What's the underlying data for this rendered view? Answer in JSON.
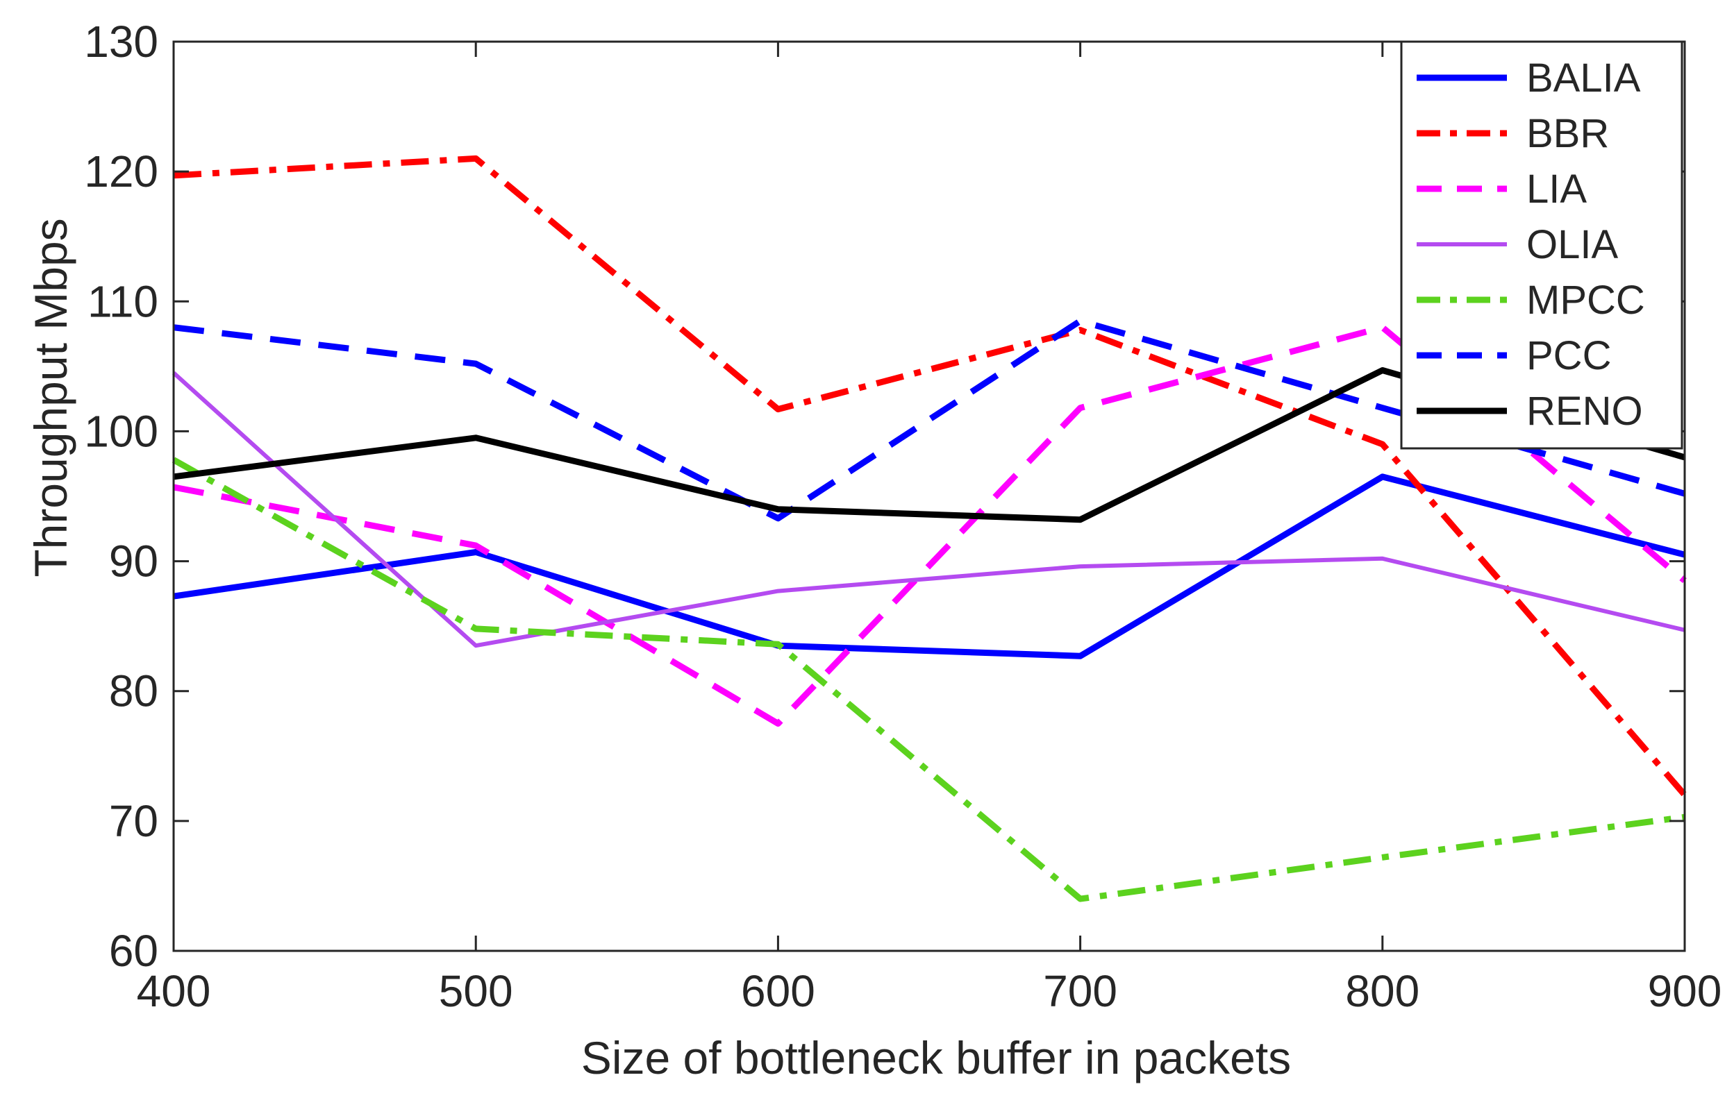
{
  "chart_data": {
    "type": "line",
    "title": "",
    "xlabel": "Size of bottleneck buffer in packets",
    "ylabel": "Throughput Mbps",
    "xlim": [
      400,
      900
    ],
    "ylim": [
      60,
      130
    ],
    "xticks": [
      400,
      500,
      600,
      700,
      800,
      900
    ],
    "yticks": [
      60,
      70,
      80,
      90,
      100,
      110,
      120,
      130
    ],
    "grid": false,
    "legend_position": "top-right",
    "x": [
      400,
      500,
      600,
      700,
      800,
      900
    ],
    "series": [
      {
        "name": "BALIA",
        "color": "#0000ff",
        "style": "solid",
        "values": [
          87.3,
          90.7,
          83.5,
          82.7,
          96.5,
          90.5
        ]
      },
      {
        "name": "BBR",
        "color": "#ff0000",
        "style": "dashdot",
        "values": [
          119.7,
          121.0,
          101.7,
          107.8,
          99.0,
          72.0
        ]
      },
      {
        "name": "LIA",
        "color": "#ff00ff",
        "style": "dashed",
        "values": [
          95.7,
          91.2,
          77.5,
          101.8,
          108.0,
          88.5
        ]
      },
      {
        "name": "OLIA",
        "color": "#b44bf0",
        "style": "solid",
        "values": [
          104.5,
          83.5,
          87.7,
          89.6,
          90.2,
          84.7
        ]
      },
      {
        "name": "MPCC",
        "color": "#5cd21e",
        "style": "dashdot",
        "values": [
          97.8,
          84.8,
          83.6,
          64.0,
          67.2,
          70.3
        ]
      },
      {
        "name": "PCC",
        "color": "#0000ff",
        "style": "dashed",
        "values": [
          108.0,
          105.2,
          93.3,
          108.5,
          101.8,
          95.2
        ]
      },
      {
        "name": "RENO",
        "color": "#000000",
        "style": "solid",
        "values": [
          96.5,
          99.5,
          94.0,
          93.2,
          104.7,
          98.0
        ]
      }
    ]
  }
}
